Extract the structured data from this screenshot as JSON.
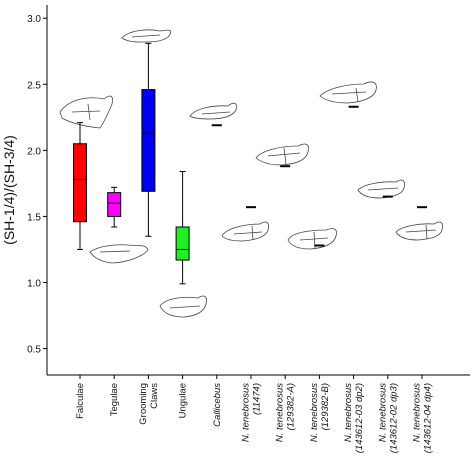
{
  "chart_data": {
    "type": "box",
    "ylabel": "(SH-1/4)/(SH-3/4)",
    "ylim": [
      0.3,
      3.1
    ],
    "yticks": [
      "0.5",
      "1.0",
      "1.5",
      "2.0",
      "2.5",
      "3.0"
    ],
    "categories": [
      {
        "label": "Falculae",
        "italic": false,
        "lines": [
          "Falculae"
        ]
      },
      {
        "label": "Tegulae",
        "italic": false,
        "lines": [
          "Tegulae"
        ]
      },
      {
        "label": "Grooming Claws",
        "italic": false,
        "lines": [
          "Grooming",
          "Claws"
        ]
      },
      {
        "label": "Ungulae",
        "italic": false,
        "lines": [
          "Ungulae"
        ]
      },
      {
        "label": "Callicebus",
        "italic": true,
        "lines": [
          "Callicebus"
        ]
      },
      {
        "label": "N. tenebrosus (11474)",
        "italic": true,
        "lines": [
          "N. tenebrosus",
          "(11474)"
        ]
      },
      {
        "label": "N. tenebrosus (129382-A)",
        "italic": true,
        "lines": [
          "N. tenebrosus",
          "(129382-A)"
        ]
      },
      {
        "label": "N. tenebrosus (129382-B)",
        "italic": true,
        "lines": [
          "N. tenebrosus",
          "(129382-B)"
        ]
      },
      {
        "label": "N. tenebrosus (143612-03 dp2)",
        "italic": true,
        "lines": [
          "N. tenebrosus",
          "(143612-03 dp2)"
        ]
      },
      {
        "label": "N. tenebrosus (143612-02 dp3)",
        "italic": true,
        "lines": [
          "N. tenebrosus",
          "(143612-02 dp3)"
        ]
      },
      {
        "label": "N. tenebrosus (143612-04 dp4)",
        "italic": true,
        "lines": [
          "N. tenebrosus",
          "(143612-04 dp4)"
        ]
      }
    ],
    "boxes": [
      {
        "category": "Falculae",
        "min": 1.25,
        "q1": 1.46,
        "median": 1.78,
        "q3": 2.05,
        "max": 2.21,
        "color": "#ff0000"
      },
      {
        "category": "Tegulae",
        "min": 1.42,
        "q1": 1.5,
        "median": 1.6,
        "q3": 1.68,
        "max": 1.72,
        "color": "#ff00ff"
      },
      {
        "category": "Grooming Claws",
        "min": 1.35,
        "q1": 1.69,
        "median": 2.13,
        "q3": 2.46,
        "max": 2.81,
        "color": "#0000ee"
      },
      {
        "category": "Ungulae",
        "min": 0.99,
        "q1": 1.17,
        "median": 1.25,
        "q3": 1.42,
        "max": 1.84,
        "color": "#22ee22"
      }
    ],
    "points": [
      {
        "category": "Callicebus",
        "value": 2.19
      },
      {
        "category": "N. tenebrosus (11474)",
        "value": 1.57
      },
      {
        "category": "N. tenebrosus (129382-A)",
        "value": 1.88
      },
      {
        "category": "N. tenebrosus (129382-B)",
        "value": 1.28
      },
      {
        "category": "N. tenebrosus (143612-03 dp2)",
        "value": 2.33
      },
      {
        "category": "N. tenebrosus (143612-02 dp3)",
        "value": 1.65
      },
      {
        "category": "N. tenebrosus (143612-04 dp4)",
        "value": 1.57
      }
    ],
    "grid": false,
    "legend": "none"
  }
}
